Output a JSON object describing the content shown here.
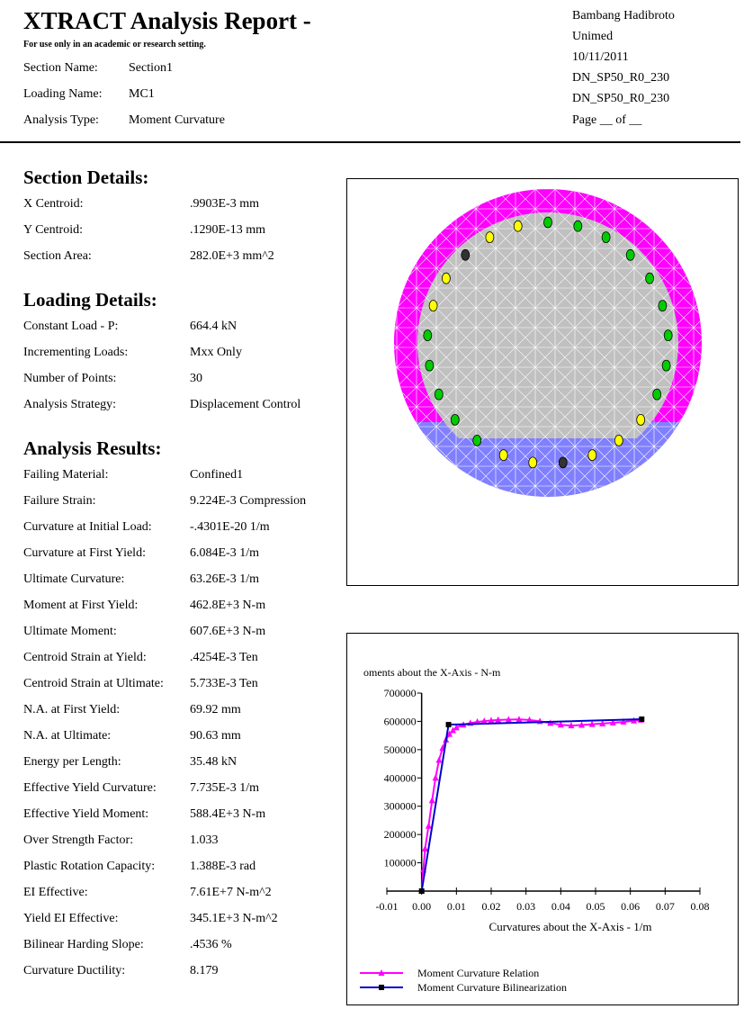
{
  "header": {
    "title": "XTRACT Analysis Report -",
    "subtitle": "For use only in an academic or research setting.",
    "fields": [
      {
        "label": "Section Name:",
        "value": "Section1"
      },
      {
        "label": "Loading Name:",
        "value": "MC1"
      },
      {
        "label": "Analysis Type:",
        "value": "Moment Curvature"
      }
    ],
    "right": [
      "Bambang Hadibroto",
      "Unimed",
      "10/11/2011",
      "DN_SP50_R0_230",
      "DN_SP50_R0_230",
      "Page __ of __"
    ]
  },
  "section_details": {
    "heading": "Section Details:",
    "rows": [
      {
        "label": "X Centroid:",
        "value": ".9903E-3  mm"
      },
      {
        "label": "Y Centroid:",
        "value": ".1290E-13  mm"
      },
      {
        "label": "Section Area:",
        "value": "282.0E+3  mm^2"
      }
    ]
  },
  "loading_details": {
    "heading": "Loading Details:",
    "rows": [
      {
        "label": "Constant Load - P:",
        "value": "664.4  kN"
      },
      {
        "label": "Incrementing Loads:",
        "value": "Mxx Only"
      },
      {
        "label": "Number of Points:",
        "value": "30"
      },
      {
        "label": "Analysis Strategy:",
        "value": "Displacement Control"
      }
    ]
  },
  "analysis_results": {
    "heading": "Analysis Results:",
    "rows": [
      {
        "label": "Failing Material:",
        "value": "Confined1"
      },
      {
        "label": "Failure Strain:",
        "value": "9.224E-3  Compression"
      },
      {
        "label": "Curvature at Initial Load:",
        "value": "-.4301E-20  1/m"
      },
      {
        "label": "Curvature at First Yield:",
        "value": "6.084E-3  1/m"
      },
      {
        "label": "Ultimate Curvature:",
        "value": "63.26E-3  1/m"
      },
      {
        "label": "Moment at First Yield:",
        "value": "462.8E+3  N-m"
      },
      {
        "label": "Ultimate Moment:",
        "value": "607.6E+3  N-m"
      },
      {
        "label": "Centroid Strain at Yield:",
        "value": ".4254E-3  Ten"
      },
      {
        "label": "Centroid Strain at Ultimate:",
        "value": "5.733E-3  Ten"
      },
      {
        "label": "N.A. at First Yield:",
        "value": "69.92  mm"
      },
      {
        "label": "N.A. at Ultimate:",
        "value": "90.63  mm"
      },
      {
        "label": "Energy per Length:",
        "value": "35.48  kN"
      },
      {
        "label": "Effective Yield Curvature:",
        "value": "7.735E-3  1/m"
      },
      {
        "label": "Effective Yield Moment:",
        "value": "588.4E+3  N-m"
      },
      {
        "label": "Over Strength Factor:",
        "value": "1.033"
      },
      {
        "label": "Plastic Rotation Capacity:",
        "value": "1.388E-3  rad"
      },
      {
        "label": "EI Effective:",
        "value": "7.61E+7  N-m^2"
      },
      {
        "label": "Yield EI Effective:",
        "value": "345.1E+3  N-m^2"
      },
      {
        "label": "Bilinear Harding Slope:",
        "value": ".4536  %"
      },
      {
        "label": "Curvature Ductility:",
        "value": "8.179"
      }
    ]
  },
  "section_figure": {
    "colors": {
      "outer_cover": "#ff00ff",
      "core": "#c0c0c0",
      "compression_zone": "#8080ff",
      "unconfined": "#e8e8e8",
      "bar_green": "#00cc00",
      "bar_yellow": "#ffff00",
      "bar_black": "#333333"
    },
    "bars": [
      {
        "color": "green"
      },
      {
        "color": "green"
      },
      {
        "color": "green"
      },
      {
        "color": "green"
      },
      {
        "color": "green"
      },
      {
        "color": "green"
      },
      {
        "color": "green"
      },
      {
        "color": "green"
      },
      {
        "color": "green"
      },
      {
        "color": "green"
      },
      {
        "color": "green"
      },
      {
        "color": "green"
      },
      {
        "color": "yellow"
      },
      {
        "color": "yellow"
      },
      {
        "color": "yellow"
      },
      {
        "color": "black"
      },
      {
        "color": "black"
      },
      {
        "color": "yellow"
      },
      {
        "color": "yellow"
      },
      {
        "color": "yellow"
      },
      {
        "color": "yellow"
      },
      {
        "color": "green"
      },
      {
        "color": "green"
      },
      {
        "color": "green"
      },
      {
        "color": "green"
      }
    ]
  },
  "chart_data": {
    "type": "line",
    "title": "oments about the X-Axis - N-m",
    "xlabel": "Curvatures about the X-Axis - 1/m",
    "ylabel": "",
    "xlim": [
      -0.01,
      0.08
    ],
    "ylim": [
      0,
      700000
    ],
    "xticks": [
      "-0.01",
      "0.00",
      "0.01",
      "0.02",
      "0.03",
      "0.04",
      "0.05",
      "0.06",
      "0.07",
      "0.08"
    ],
    "yticks": [
      "100000",
      "200000",
      "300000",
      "400000",
      "500000",
      "600000",
      "700000"
    ],
    "legend_position": "bottom-left",
    "series": [
      {
        "name": "Moment Curvature Relation",
        "color": "#ff00ff",
        "x": [
          0,
          0.0005,
          0.001,
          0.002,
          0.003,
          0.004,
          0.005,
          0.006,
          0.007,
          0.008,
          0.009,
          0.01,
          0.012,
          0.014,
          0.016,
          0.018,
          0.02,
          0.022,
          0.025,
          0.028,
          0.031,
          0.034,
          0.037,
          0.04,
          0.043,
          0.046,
          0.049,
          0.052,
          0.055,
          0.058,
          0.061,
          0.063
        ],
        "y": [
          0,
          75000,
          150000,
          230000,
          320000,
          400000,
          463000,
          505000,
          535000,
          555000,
          568000,
          578000,
          588000,
          594000,
          598000,
          601000,
          603000,
          605000,
          606000,
          607000,
          605000,
          600000,
          594000,
          588000,
          585000,
          587000,
          590000,
          592000,
          595000,
          598000,
          602000,
          605000
        ]
      },
      {
        "name": "Moment Curvature Bilinearization",
        "color": "#0000cc",
        "x": [
          0,
          0.007735,
          0.06326
        ],
        "y": [
          0,
          588400,
          607600
        ]
      }
    ]
  }
}
